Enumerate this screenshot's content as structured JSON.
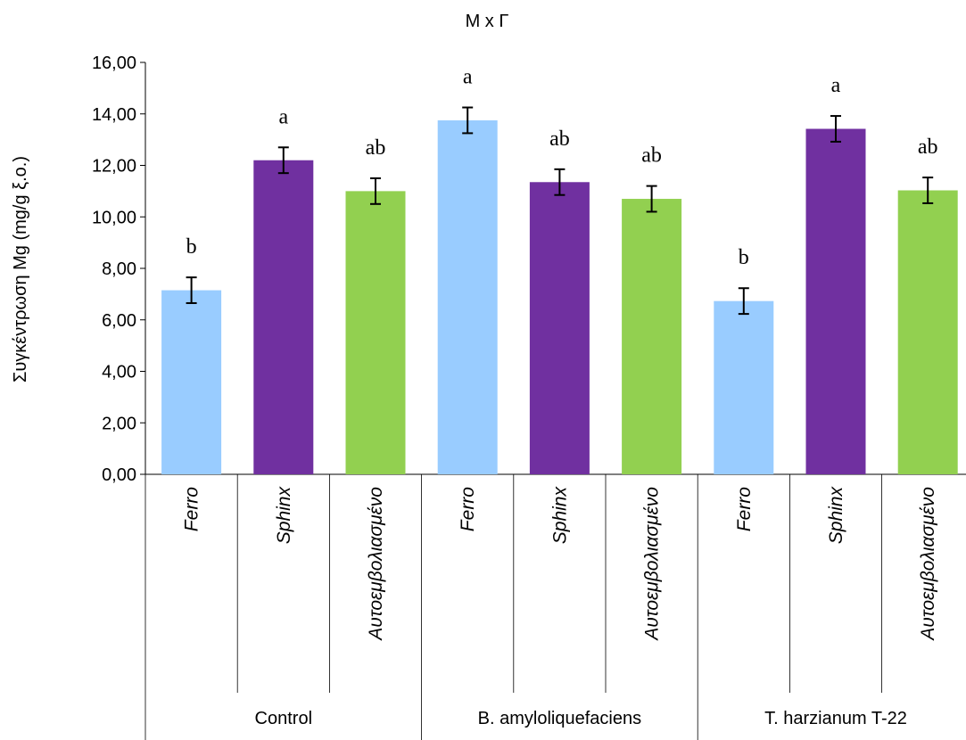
{
  "chart_data": {
    "type": "bar",
    "title": "M x Γ",
    "ylabel": "Συγκέντρωση Mg (mg/g ξ.ο.)",
    "xlabel": "",
    "ylim": [
      0,
      16
    ],
    "yticks": [
      "0,00",
      "2,00",
      "4,00",
      "6,00",
      "8,00",
      "10,00",
      "12,00",
      "14,00",
      "16,00"
    ],
    "grid": false,
    "legend": "none",
    "groups": [
      "Control",
      "B. amyloliquefaciens",
      "T. harzianum T-22"
    ],
    "varieties": [
      "Ferro",
      "Sphinx",
      "Αυτοεμβολιασμένο"
    ],
    "variety_colors": [
      "#99ccff",
      "#7030a0",
      "#92d050"
    ],
    "bars": [
      {
        "group": "Control",
        "variety": "Ferro",
        "value": 7.15,
        "error": 0.5,
        "letter": "b"
      },
      {
        "group": "Control",
        "variety": "Sphinx",
        "value": 12.2,
        "error": 0.5,
        "letter": "a"
      },
      {
        "group": "Control",
        "variety": "Αυτοεμβολιασμένο",
        "value": 11.0,
        "error": 0.5,
        "letter": "ab"
      },
      {
        "group": "B. amyloliquefaciens",
        "variety": "Ferro",
        "value": 13.75,
        "error": 0.5,
        "letter": "a"
      },
      {
        "group": "B. amyloliquefaciens",
        "variety": "Sphinx",
        "value": 11.35,
        "error": 0.5,
        "letter": "ab"
      },
      {
        "group": "B. amyloliquefaciens",
        "variety": "Αυτοεμβολιασμένο",
        "value": 10.7,
        "error": 0.5,
        "letter": "ab"
      },
      {
        "group": "T. harzianum T-22",
        "variety": "Ferro",
        "value": 6.73,
        "error": 0.5,
        "letter": "b"
      },
      {
        "group": "T. harzianum T-22",
        "variety": "Sphinx",
        "value": 13.42,
        "error": 0.5,
        "letter": "a"
      },
      {
        "group": "T. harzianum T-22",
        "variety": "Αυτοεμβολιασμένο",
        "value": 11.03,
        "error": 0.5,
        "letter": "ab"
      }
    ]
  }
}
